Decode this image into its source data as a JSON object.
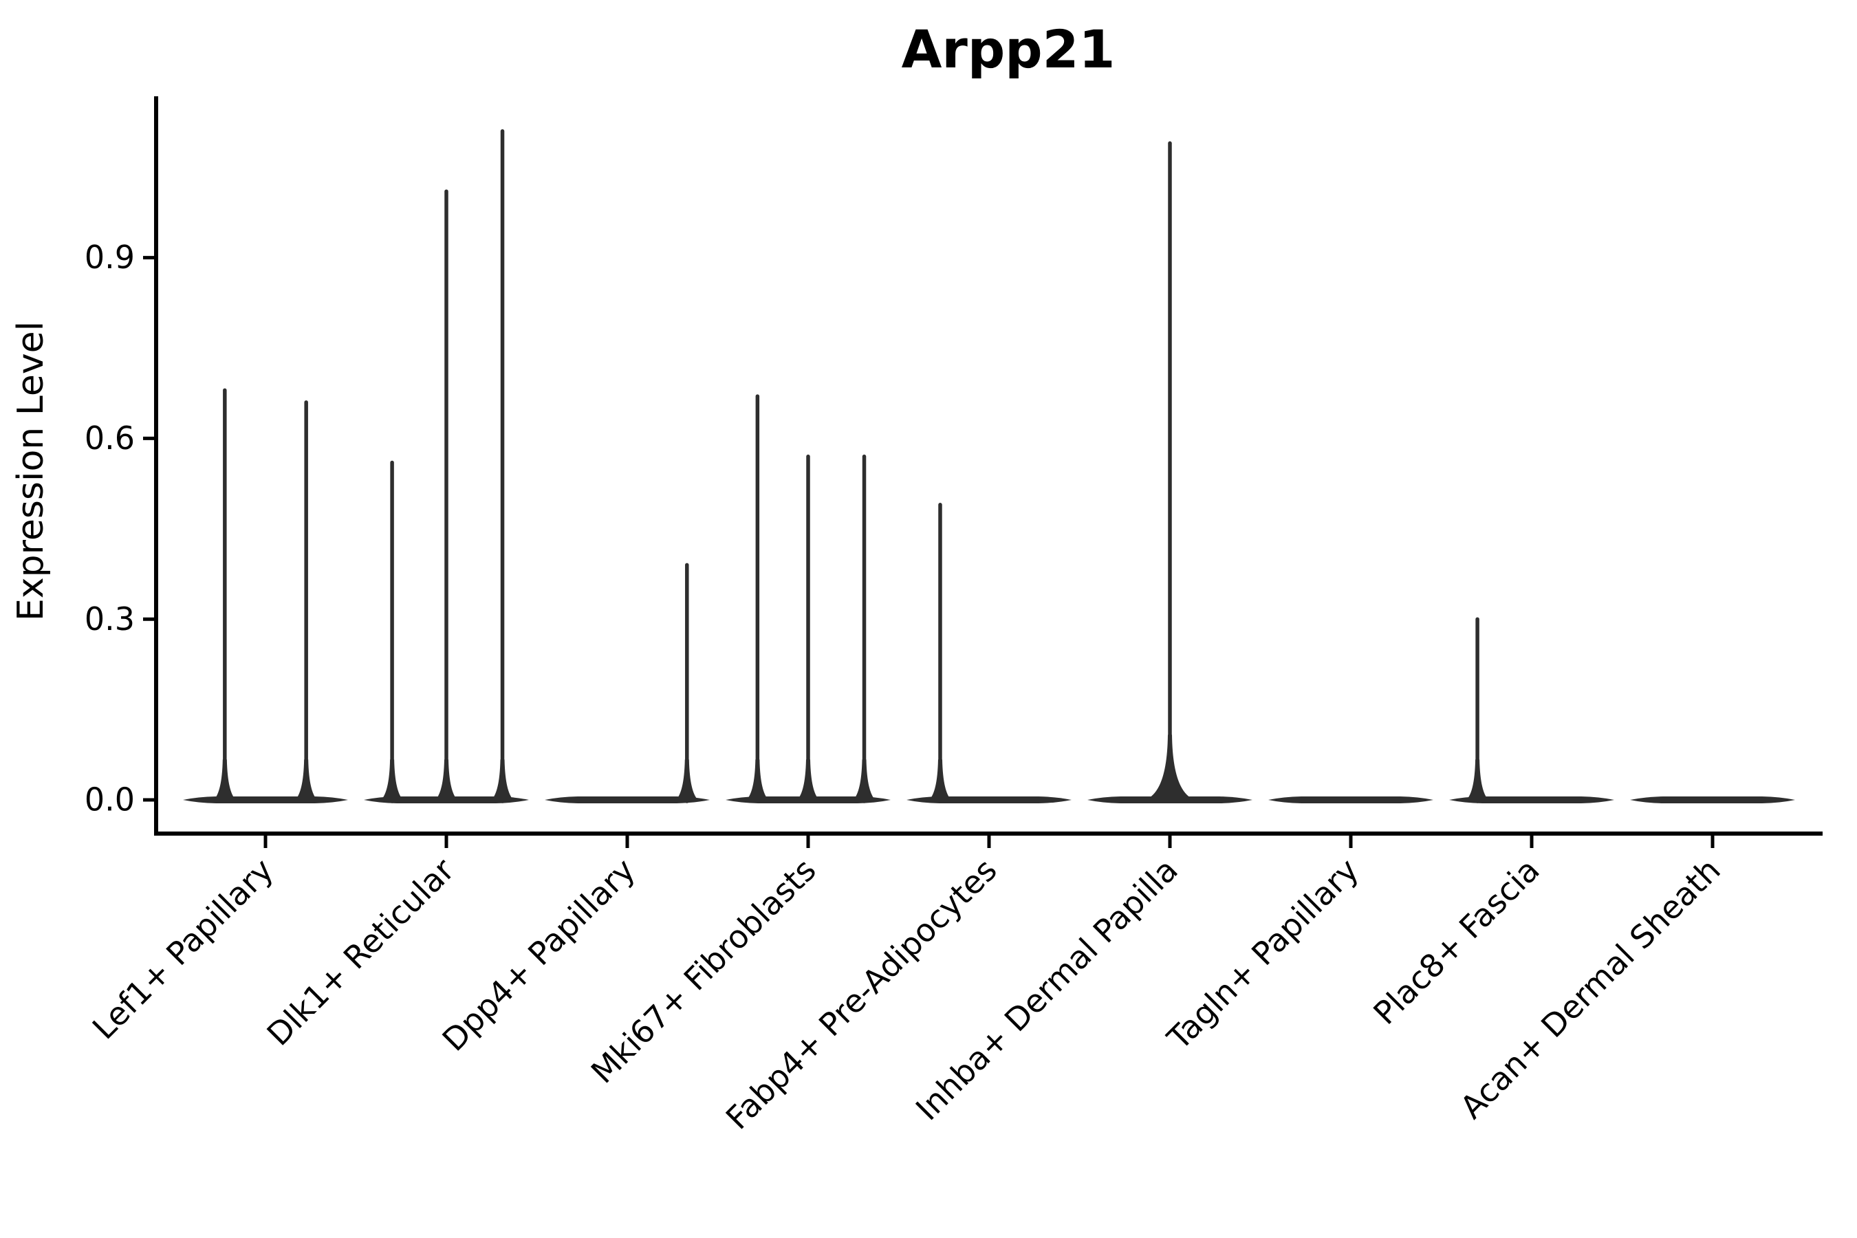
{
  "figure": {
    "background": "#ffffff"
  },
  "chart_data": {
    "type": "violin",
    "title": "Arpp21",
    "ylabel": "Expression Level",
    "xlabel": "",
    "y_ticks": [
      0.0,
      0.3,
      0.6,
      0.9
    ],
    "y_tick_labels": [
      "0.0",
      "0.3",
      "0.6",
      "0.9"
    ],
    "ylim": [
      -0.056,
      1.164
    ],
    "grid": false,
    "legend": "none",
    "violin_color": "#2e2e2e",
    "axis_color": "#000000",
    "text_color": "#000000",
    "description": "Violin plot of Arpp21 expression; most cells are at 0 (wide flat violin bases) with thin density spikes up to the listed maximum expression values; spike offsets are fractions of the category band width",
    "categories": [
      {
        "label": "Lef1+ Papillary",
        "base": true,
        "spikes": [
          {
            "offset": -0.225,
            "value": 0.68
          },
          {
            "offset": 0.225,
            "value": 0.66
          }
        ]
      },
      {
        "label": "Dlk1+ Reticular",
        "base": true,
        "spikes": [
          {
            "offset": -0.3,
            "value": 0.56
          },
          {
            "offset": 0.0,
            "value": 1.01
          },
          {
            "offset": 0.31,
            "value": 1.11
          }
        ]
      },
      {
        "label": "Dpp4+ Papillary",
        "base": true,
        "spikes": [
          {
            "offset": 0.33,
            "value": 0.39
          }
        ]
      },
      {
        "label": "Mki67+ Fibroblasts",
        "base": true,
        "spikes": [
          {
            "offset": -0.28,
            "value": 0.67
          },
          {
            "offset": 0.0,
            "value": 0.57
          },
          {
            "offset": 0.31,
            "value": 0.57
          }
        ]
      },
      {
        "label": "Fabp4+ Pre-Adipocytes",
        "base": true,
        "spikes": [
          {
            "offset": -0.27,
            "value": 0.49
          }
        ]
      },
      {
        "label": "Inhba+ Dermal Papilla",
        "base": true,
        "spikes": [
          {
            "offset": 0.0,
            "value": 1.09,
            "flare": 36
          }
        ]
      },
      {
        "label": "Tagln+ Papillary",
        "base": true,
        "spikes": []
      },
      {
        "label": "Plac8+ Fascia",
        "base": true,
        "spikes": [
          {
            "offset": -0.3,
            "value": 0.3
          }
        ]
      },
      {
        "label": "Acan+ Dermal Sheath",
        "base": true,
        "spikes": []
      }
    ]
  }
}
